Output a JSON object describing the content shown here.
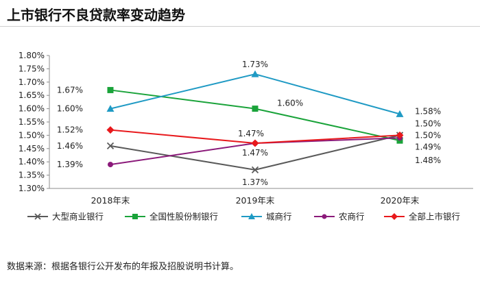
{
  "title": "上市银行不良贷款率变动趋势",
  "source": "数据来源：根据各银行公开发布的年报及招股说明书计算。",
  "chart_data": {
    "type": "line",
    "categories": [
      "2018年末",
      "2019年末",
      "2020年末"
    ],
    "ylim": [
      1.3,
      1.8
    ],
    "yticks": [
      "1.30%",
      "1.35%",
      "1.40%",
      "1.45%",
      "1.50%",
      "1.55%",
      "1.60%",
      "1.65%",
      "1.70%",
      "1.75%",
      "1.80%"
    ],
    "legend_position": "bottom",
    "grid": false,
    "series": [
      {
        "name": "大型商业银行",
        "color": "#595959",
        "marker": "x",
        "values": [
          1.46,
          1.37,
          1.5
        ],
        "labels": [
          "1.46%",
          "1.37%",
          "1.50%"
        ]
      },
      {
        "name": "全国性股份制银行",
        "color": "#1aa33a",
        "marker": "square",
        "values": [
          1.67,
          1.6,
          1.48
        ],
        "labels": [
          "1.67%",
          "1.60%",
          "1.48%"
        ]
      },
      {
        "name": "城商行",
        "color": "#1f9ac4",
        "marker": "triangle",
        "values": [
          1.6,
          1.73,
          1.58
        ],
        "labels": [
          "1.60%",
          "1.73%",
          "1.58%"
        ]
      },
      {
        "name": "农商行",
        "color": "#8b1a7a",
        "marker": "circle",
        "values": [
          1.39,
          1.47,
          1.49
        ],
        "labels": [
          "1.39%",
          "1.47%",
          "1.49%"
        ]
      },
      {
        "name": "全部上市银行",
        "color": "#e8191c",
        "marker": "diamond",
        "values": [
          1.52,
          1.47,
          1.5
        ],
        "labels": [
          "1.52%",
          "1.47%",
          "1.50%"
        ]
      }
    ]
  }
}
